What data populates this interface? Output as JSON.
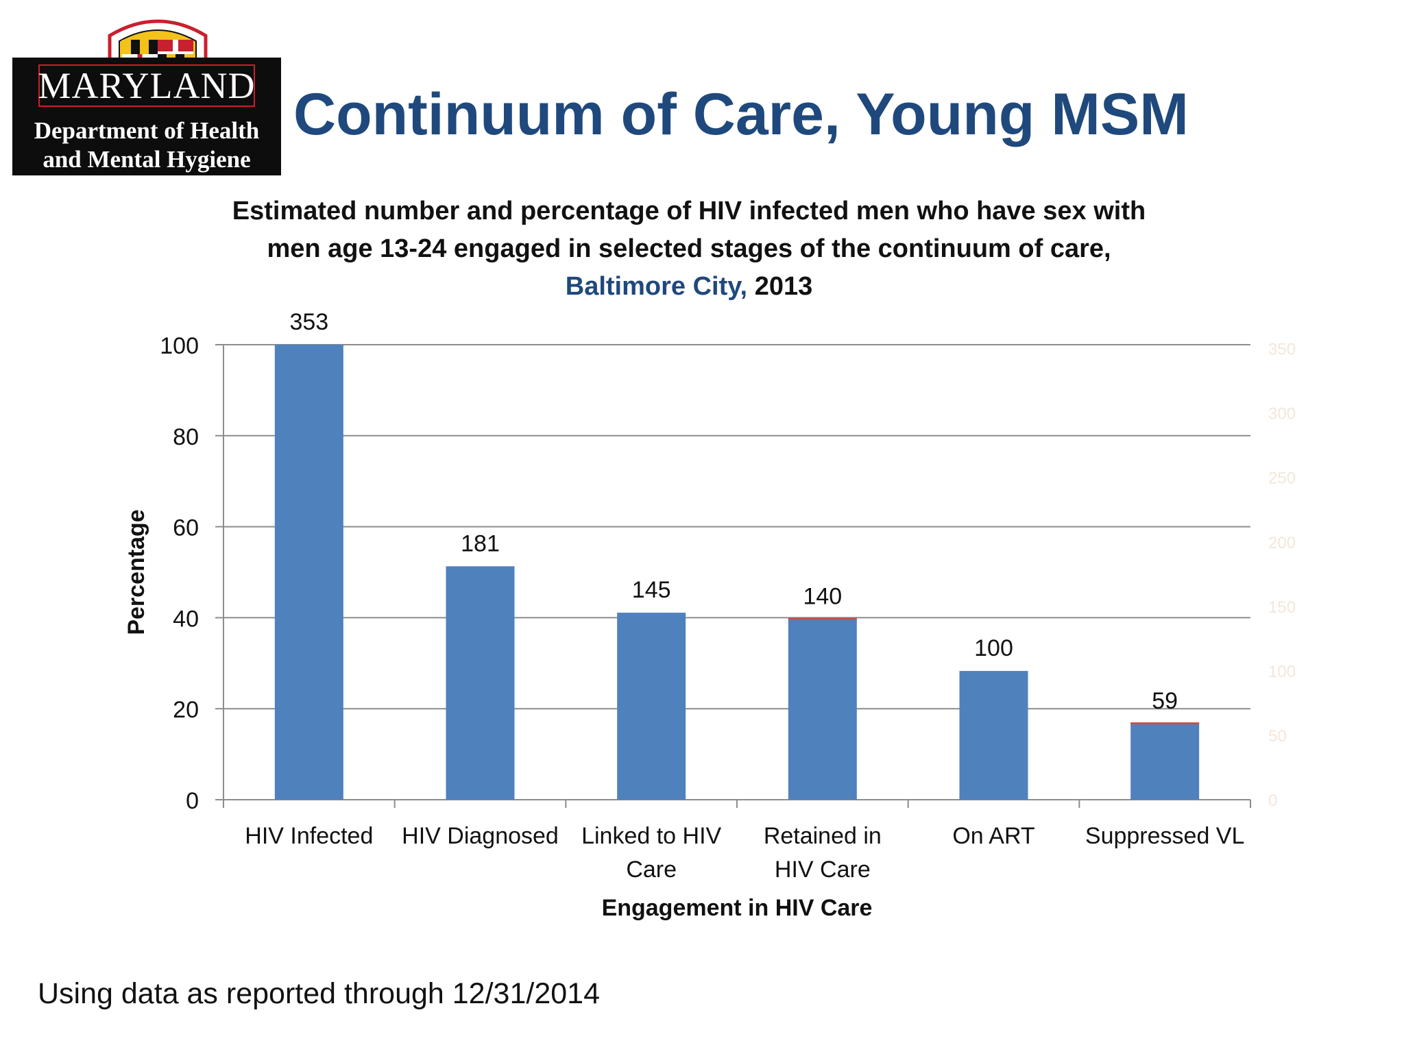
{
  "logo": {
    "name": "MARYLAND",
    "department_line1": "Department of Health",
    "department_line2": "and Mental Hygiene"
  },
  "slide": {
    "title": "Continuum of Care, Young MSM",
    "footnote": "Using data as reported through 12/31/2014"
  },
  "colors": {
    "title": "#1f497d",
    "bar": "#4f81bd",
    "bar_top_accent": "#c0504d",
    "location_text": "#1f497d",
    "grid": "#8c8c8c",
    "secondary_axis_text": "#f3e6da"
  },
  "chart_data": {
    "type": "bar",
    "title_line1": "Estimated number and percentage of HIV infected men who have sex with",
    "title_line2": "men age 13-24 engaged in selected stages of the continuum of care,",
    "title_line3_location": "Baltimore City,",
    "title_line3_year": "2013",
    "categories": [
      [
        "HIV Infected"
      ],
      [
        "HIV Diagnosed"
      ],
      [
        "Linked to HIV",
        "Care"
      ],
      [
        "Retained in",
        "HIV Care"
      ],
      [
        "On ART"
      ],
      [
        "Suppressed VL"
      ]
    ],
    "series": [
      {
        "values": [
          100,
          51.3,
          41.1,
          39.7,
          28.3,
          16.7
        ]
      }
    ],
    "data_labels": [
      "353",
      "181",
      "145",
      "140",
      "100",
      "59"
    ],
    "xlabel": "Engagement in HIV Care",
    "ylabel": "Percentage",
    "ylim": [
      0,
      100
    ],
    "yticks": [
      "0",
      "20",
      "40",
      "60",
      "80",
      "100"
    ],
    "y2lim": [
      0,
      353
    ],
    "y2ticks": [
      "0",
      "50",
      "100",
      "150",
      "200",
      "250",
      "300",
      "350"
    ],
    "grid": true,
    "legend": "none"
  }
}
